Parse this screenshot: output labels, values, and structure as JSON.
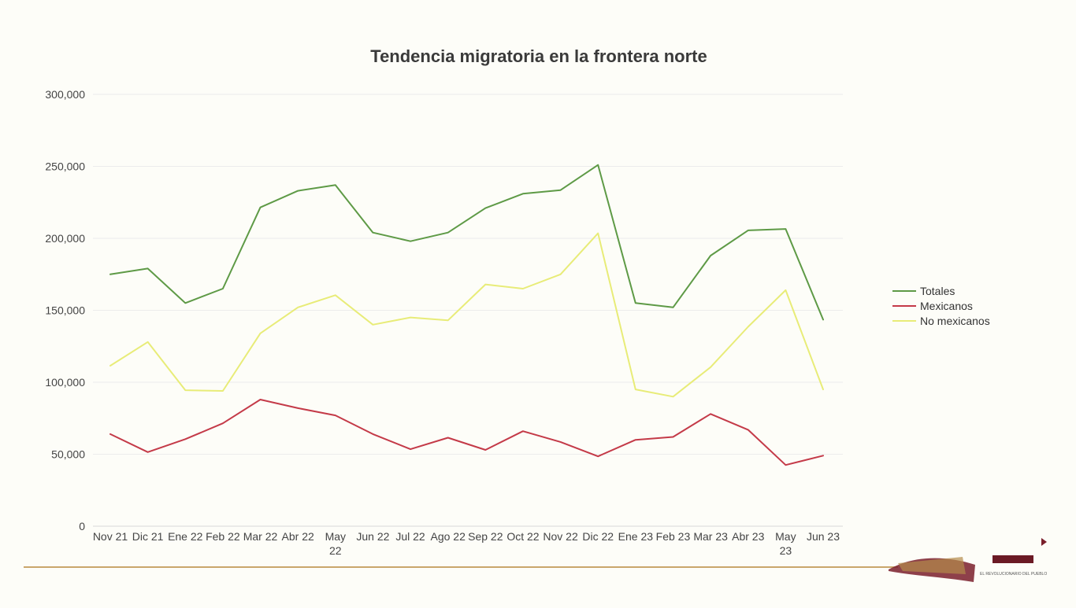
{
  "colors": {
    "background": "#fdfdf8",
    "gold_rule": "#c9a66b",
    "logo_maroon": "#7a1f2b"
  },
  "logo": {
    "text": "EL REVOLUCIONARIO DEL PUEBLO"
  },
  "chart_data": {
    "type": "line",
    "title": "Tendencia migratoria en la frontera norte",
    "xlabel": "",
    "ylabel": "",
    "ylim": [
      0,
      300000
    ],
    "yticks": [
      0,
      50000,
      100000,
      150000,
      200000,
      250000,
      300000
    ],
    "ytick_labels": [
      "0",
      "50,000",
      "100,000",
      "150,000",
      "200,000",
      "250,000",
      "300,000"
    ],
    "grid": true,
    "legend_position": "right",
    "categories": [
      [
        "Nov 21"
      ],
      [
        "Dic 21"
      ],
      [
        "Ene 22"
      ],
      [
        "Feb 22"
      ],
      [
        "Mar 22"
      ],
      [
        "Abr 22"
      ],
      [
        "May",
        "22"
      ],
      [
        "Jun 22"
      ],
      [
        "Jul 22"
      ],
      [
        "Ago 22"
      ],
      [
        "Sep 22"
      ],
      [
        "Oct 22"
      ],
      [
        "Nov 22"
      ],
      [
        "Dic 22"
      ],
      [
        "Ene 23"
      ],
      [
        "Feb 23"
      ],
      [
        "Mar 23"
      ],
      [
        "Abr 23"
      ],
      [
        "May",
        "23"
      ],
      [
        "Jun 23"
      ]
    ],
    "series": [
      {
        "name": "Totales",
        "color": "#5e9a46",
        "values": [
          175000,
          179000,
          155000,
          165000,
          221500,
          233000,
          237000,
          204000,
          198000,
          204000,
          221000,
          231000,
          233500,
          251000,
          155000,
          152000,
          188000,
          205500,
          206500,
          143500
        ]
      },
      {
        "name": "Mexicanos",
        "color": "#c43a48",
        "values": [
          64000,
          51500,
          60500,
          71500,
          88000,
          82000,
          77000,
          64000,
          53500,
          61500,
          53000,
          66000,
          58500,
          48500,
          60000,
          62000,
          78000,
          67000,
          42500,
          49000
        ]
      },
      {
        "name": "No mexicanos",
        "color": "#e8ec78",
        "values": [
          111500,
          128000,
          94500,
          94000,
          134000,
          152000,
          160500,
          140000,
          145000,
          143000,
          168000,
          165000,
          175000,
          203500,
          95000,
          90000,
          110500,
          138500,
          164000,
          95000
        ]
      }
    ]
  }
}
